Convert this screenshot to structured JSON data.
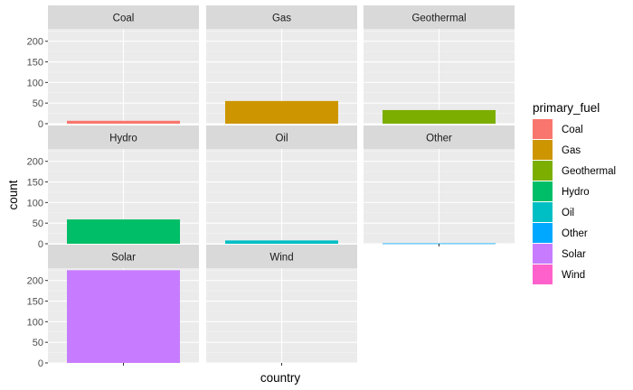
{
  "chart_data": {
    "type": "bar",
    "facet_by": "primary_fuel",
    "xlabel": "country",
    "ylabel": "count",
    "ylim": [
      0,
      230
    ],
    "yticks": [
      0,
      50,
      100,
      150,
      200
    ],
    "x_category": "",
    "legend": {
      "title": "primary_fuel",
      "placement": "right"
    },
    "grid": true,
    "panels": [
      {
        "name": "Coal",
        "value": 7,
        "color": "#F8766D"
      },
      {
        "name": "Gas",
        "value": 55,
        "color": "#CD9600"
      },
      {
        "name": "Geothermal",
        "value": 33,
        "color": "#7CAE00"
      },
      {
        "name": "Hydro",
        "value": 59,
        "color": "#00BE67"
      },
      {
        "name": "Oil",
        "value": 8,
        "color": "#00BFC4"
      },
      {
        "name": "Other",
        "value": 1,
        "color": "#00A9FF"
      },
      {
        "name": "Solar",
        "value": 225,
        "color": "#C77CFF"
      },
      {
        "name": "Wind",
        "value": 0,
        "color": "#FF61CC"
      }
    ]
  }
}
